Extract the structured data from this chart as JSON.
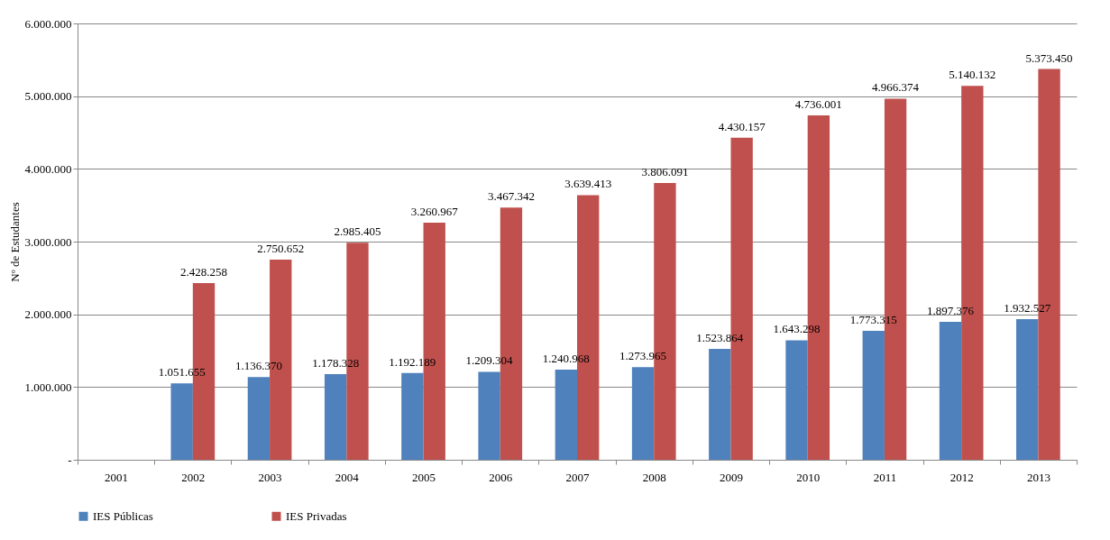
{
  "chart_data": {
    "type": "bar",
    "ylabel": "Nº de Estudantes",
    "categories": [
      "2001",
      "2002",
      "2003",
      "2004",
      "2005",
      "2006",
      "2007",
      "2008",
      "2009",
      "2010",
      "2011",
      "2012",
      "2013"
    ],
    "series": [
      {
        "name": "IES Públicas",
        "color": "#4f81bd",
        "values": [
          null,
          1051655,
          1136370,
          1178328,
          1192189,
          1209304,
          1240968,
          1273965,
          1523864,
          1643298,
          1773315,
          1897376,
          1932527
        ],
        "value_labels": [
          null,
          "1.051.655",
          "1.136.370",
          "1.178.328",
          "1.192.189",
          "1.209.304",
          "1.240.968",
          "1.273.965",
          "1.523.864",
          "1.643.298",
          "1.773.315",
          "1.897.376",
          "1.932.527"
        ]
      },
      {
        "name": "IES Privadas",
        "color": "#c0504d",
        "values": [
          null,
          2428258,
          2750652,
          2985405,
          3260967,
          3467342,
          3639413,
          3806091,
          4430157,
          4736001,
          4966374,
          5140132,
          5373450
        ],
        "value_labels": [
          null,
          "2.428.258",
          "2.750.652",
          "2.985.405",
          "3.260.967",
          "3.467.342",
          "3.639.413",
          "3.806.091",
          "4.430.157",
          "4.736.001",
          "4.966.374",
          "5.140.132",
          "5.373.450"
        ]
      }
    ],
    "ylim": [
      0,
      6000000
    ],
    "yticks": [
      {
        "value": 0,
        "label": "-"
      },
      {
        "value": 1000000,
        "label": "1.000.000"
      },
      {
        "value": 2000000,
        "label": "2.000.000"
      },
      {
        "value": 3000000,
        "label": "3.000.000"
      },
      {
        "value": 4000000,
        "label": "4.000.000"
      },
      {
        "value": 5000000,
        "label": "5.000.000"
      },
      {
        "value": 6000000,
        "label": "6.000.000"
      }
    ],
    "grid": "y",
    "legend": "bottom"
  }
}
